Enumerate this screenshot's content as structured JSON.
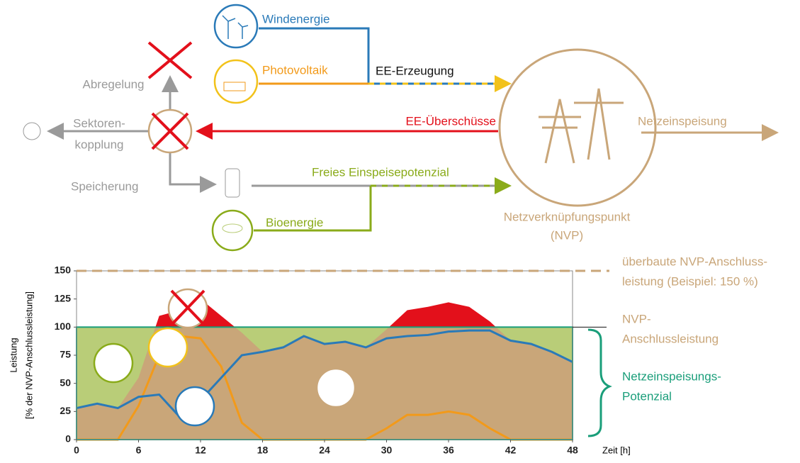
{
  "diagram": {
    "wind": "Windenergie",
    "pv": "Photovoltaik",
    "generation": "EE-Erzeugung",
    "curtailment": "Abregelung",
    "coupling": [
      "Sektoren-",
      "kopplung"
    ],
    "surplus": "EE-Überschüsse",
    "feed_in": "Netzeinspeisung",
    "storage": "Speicherung",
    "free_potential": "Freies Einspeisepotenzial",
    "bio": "Bioenergie",
    "nvp": [
      "Netzverknüpfungspunkt",
      "(NVP)"
    ]
  },
  "chart_data": {
    "type": "area",
    "ylabel": [
      "Leistung",
      "[% der NVP-Anschlussleistung]"
    ],
    "xlabel": "Zeit [h]",
    "x": [
      0,
      2,
      4,
      6,
      8,
      10,
      12,
      14,
      16,
      18,
      20,
      22,
      24,
      26,
      28,
      30,
      32,
      34,
      36,
      38,
      40,
      42,
      44,
      46,
      48
    ],
    "series": [
      {
        "color": "#2a7ab8",
        "values": [
          28,
          32,
          28,
          38,
          40,
          20,
          35,
          55,
          75,
          78,
          82,
          92,
          85,
          87,
          82,
          90,
          92,
          93,
          96,
          97,
          97,
          88,
          85,
          78,
          69
        ]
      },
      {
        "color": "#f29a1a",
        "values": [
          0,
          0,
          0,
          30,
          75,
          92,
          90,
          65,
          15,
          0,
          0,
          0,
          0,
          0,
          0,
          10,
          22,
          22,
          25,
          22,
          10,
          0,
          0,
          0,
          0
        ]
      },
      {
        "color": "#c9a679",
        "values": [
          28,
          32,
          28,
          55,
          110,
          115,
          125,
          110,
          95,
          78,
          82,
          92,
          85,
          87,
          82,
          98,
          115,
          118,
          122,
          118,
          105,
          88,
          85,
          78,
          69
        ]
      }
    ],
    "surplus_color": "#e3101b",
    "capacity_color": "#b9cd78",
    "capacity": 100,
    "capacity_label": [
      "NVP-",
      "Anschlussleistung"
    ],
    "overbuilt": 150,
    "overbuilt_label": [
      "überbaute NVP-Anschluss-",
      "leistung (Beispiel: 150 %)"
    ],
    "potential_label": [
      "Netzeinspeisungs-",
      "Potenzial"
    ],
    "xlim": [
      0,
      48
    ],
    "ylim": [
      0,
      150
    ],
    "xticks": [
      0,
      6,
      12,
      18,
      24,
      30,
      36,
      42,
      48
    ],
    "yticks": [
      0,
      25,
      50,
      75,
      100,
      125,
      150
    ]
  }
}
